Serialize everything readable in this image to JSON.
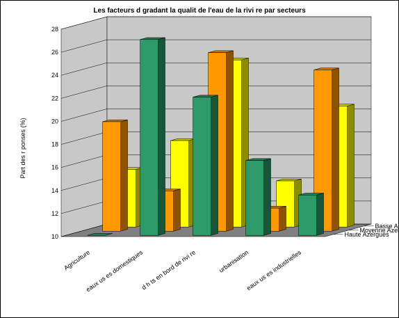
{
  "chart_data": {
    "type": "bar3d",
    "title": "Les facteurs d  gradant la qualit   de l'eau de la rivi  re par secteurs",
    "y_label": "Part des r ponses (%)",
    "categories": [
      "Agriculture",
      "eaux us es domestiques",
      "d  h ts en bord de rivi re",
      "urbanisation",
      "eaux us es industrielles"
    ],
    "series": [
      {
        "name": "Basse Azergues",
        "color": "#ffff00",
        "values": [
          15,
          17.5,
          24.5,
          14,
          20.5
        ]
      },
      {
        "name": "Moyenne Azergues",
        "color": "#ff9900",
        "values": [
          19.5,
          13.5,
          25.5,
          12,
          24
        ]
      },
      {
        "name": "Haute Azergues",
        "color": "#2e9a6a",
        "values": [
          10,
          27,
          22,
          16.5,
          13.5
        ]
      }
    ],
    "ylim": [
      10,
      28
    ],
    "yticks": [
      10,
      12,
      14,
      16,
      18,
      20,
      22,
      24,
      26,
      28
    ],
    "grid": true
  }
}
